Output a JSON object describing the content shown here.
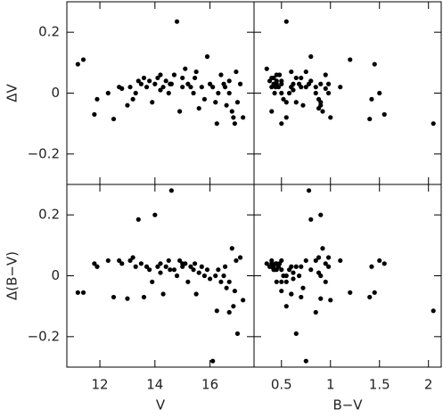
{
  "chart_data": [
    {
      "type": "scatter",
      "ylabel": "ΔV",
      "x": [
        11.2,
        11.4,
        11.8,
        11.9,
        12.3,
        12.5,
        12.7,
        12.8,
        13.0,
        13.1,
        13.3,
        13.4,
        13.5,
        13.6,
        13.7,
        13.8,
        13.9,
        14.0,
        14.1,
        14.2,
        14.3,
        14.4,
        14.5,
        14.6,
        14.7,
        14.8,
        14.9,
        15.0,
        15.1,
        15.2,
        15.3,
        15.4,
        15.5,
        15.6,
        15.7,
        15.8,
        15.9,
        16.0,
        16.1,
        16.2,
        16.3,
        16.4,
        16.5,
        16.6,
        16.7,
        16.8,
        16.9,
        17.0,
        17.1,
        17.2,
        16.95,
        16.85,
        16.55,
        15.45,
        14.55,
        13.2,
        16.25,
        15.0,
        14.2,
        16.7
      ],
      "values": [
        0.095,
        0.11,
        -0.07,
        -0.02,
        0,
        -0.085,
        0.02,
        0.015,
        -0.04,
        0.02,
        0,
        0.04,
        0.03,
        0.05,
        0.02,
        0.04,
        -0.03,
        0.03,
        0.05,
        0.06,
        0.02,
        0.04,
        0,
        0.03,
        0.06,
        0.235,
        -0.06,
        0.05,
        0.08,
        0.03,
        0.02,
        0,
        0.07,
        -0.05,
        0.02,
        -0.02,
        0.12,
        0.03,
        0.02,
        -0.03,
        0,
        0.06,
        0.03,
        -0.04,
        0,
        -0.06,
        -0.1,
        -0.03,
        0.03,
        -0.08,
        0.07,
        -0.08,
        0.02,
        0.05,
        0.03,
        -0.02,
        -0.1,
        0.02,
        0.01,
        0.04
      ],
      "color": "#000000",
      "xlim": [
        10.8,
        17.6
      ],
      "xticks": [
        12,
        14,
        16
      ],
      "ylim": [
        -0.3,
        0.3
      ],
      "yticks": [
        {
          "value": -0.2,
          "label": "−0.2"
        },
        0,
        0.2
      ]
    },
    {
      "type": "scatter",
      "x": [
        1.45,
        1.2,
        1.55,
        1.42,
        1.5,
        1.4,
        1.1,
        0.95,
        0.9,
        0.85,
        0.98,
        0.8,
        0.45,
        0.7,
        0.4,
        0.5,
        0.55,
        0.9,
        0.42,
        0.48,
        0.6,
        0.38,
        0.5,
        0.78,
        0.45,
        0.55,
        0.4,
        0.65,
        0.35,
        0.5,
        0.7,
        0.43,
        0.6,
        0.88,
        0.47,
        0.52,
        0.8,
        0.62,
        0.75,
        0.9,
        0.58,
        0.95,
        0.68,
        0.72,
        0.85,
        0.92,
        0.5,
        0.65,
        0.98,
        1.0,
        0.75,
        0.55,
        0.6,
        0.4,
        0.42,
        0.88,
        2.05,
        0.44,
        0.62,
        0.45
      ],
      "values": [
        0.095,
        0.11,
        -0.07,
        -0.02,
        0,
        -0.085,
        0.02,
        0.015,
        -0.04,
        0.02,
        0,
        0.04,
        0.03,
        0.05,
        0.02,
        0.04,
        -0.03,
        0.03,
        0.05,
        0.06,
        0.02,
        0.04,
        0,
        0.03,
        0.06,
        0.235,
        -0.06,
        0.05,
        0.08,
        0.03,
        0.02,
        0,
        0.07,
        -0.05,
        0.02,
        -0.02,
        0.12,
        0.03,
        0.02,
        -0.03,
        0,
        0.06,
        0.03,
        -0.04,
        0,
        -0.06,
        -0.1,
        -0.03,
        0.03,
        -0.08,
        0.07,
        -0.08,
        0.02,
        0.05,
        0.03,
        -0.02,
        -0.1,
        0.02,
        0.01,
        0.04
      ],
      "color": "#000000",
      "xlim": [
        0.22,
        2.13
      ],
      "xticks": [
        0.5,
        1,
        1.5,
        2
      ],
      "ylim": [
        -0.3,
        0.3
      ],
      "yticks": [
        -0.2,
        0,
        0.2
      ]
    },
    {
      "type": "scatter",
      "xlabel": "V",
      "ylabel": "Δ(B−V)",
      "x": [
        11.2,
        11.4,
        11.8,
        11.9,
        12.3,
        12.5,
        12.7,
        12.8,
        13.0,
        13.1,
        13.3,
        13.4,
        13.5,
        13.6,
        13.7,
        13.8,
        13.9,
        14.0,
        14.1,
        14.2,
        14.3,
        14.4,
        14.5,
        14.6,
        14.7,
        14.8,
        14.9,
        15.0,
        15.1,
        15.2,
        15.3,
        15.4,
        15.5,
        15.6,
        15.7,
        15.8,
        15.9,
        16.0,
        16.1,
        16.2,
        16.3,
        16.4,
        16.5,
        16.6,
        16.7,
        16.8,
        16.9,
        17.0,
        17.1,
        17.2,
        16.95,
        16.85,
        16.55,
        15.45,
        14.55,
        13.2,
        16.25,
        15.0,
        14.2,
        16.7
      ],
      "values": [
        -0.055,
        -0.055,
        0.04,
        0.03,
        0.05,
        -0.07,
        0.05,
        0.04,
        -0.075,
        0.05,
        0.03,
        0.185,
        0.04,
        -0.07,
        0.03,
        0.02,
        -0.02,
        0.2,
        0.03,
        0.04,
        -0.06,
        0.03,
        0.05,
        0.28,
        0.02,
        0,
        0.05,
        0.03,
        0.04,
        -0.02,
        0.03,
        0.02,
        -0.06,
        0.01,
        0.03,
        0,
        0.02,
        -0.01,
        -0.28,
        0,
        0.02,
        -0.02,
        0,
        -0.04,
        -0.12,
        0.09,
        -0.05,
        -0.19,
        0.06,
        -0.08,
        0.05,
        -0.1,
        0.03,
        0.04,
        0.02,
        0.06,
        -0.115,
        0.04,
        0.01,
        -0.02
      ],
      "color": "#000000",
      "xlim": [
        10.8,
        17.6
      ],
      "xticks": [
        12,
        14,
        16
      ],
      "ylim": [
        -0.3,
        0.3
      ],
      "yticks": [
        {
          "value": -0.2,
          "label": "−0.2"
        },
        0,
        0.2
      ]
    },
    {
      "type": "scatter",
      "xlabel": "B−V",
      "x": [
        1.45,
        1.2,
        1.55,
        1.42,
        1.5,
        1.4,
        1.1,
        0.95,
        0.9,
        0.85,
        0.98,
        0.8,
        0.45,
        0.7,
        0.4,
        0.5,
        0.55,
        0.9,
        0.42,
        0.48,
        0.6,
        0.38,
        0.5,
        0.78,
        0.45,
        0.55,
        0.4,
        0.65,
        0.35,
        0.5,
        0.7,
        0.43,
        0.6,
        0.88,
        0.47,
        0.52,
        0.8,
        0.62,
        0.75,
        0.9,
        0.58,
        0.95,
        0.68,
        0.72,
        0.85,
        0.92,
        0.5,
        0.65,
        0.98,
        1.0,
        0.75,
        0.55,
        0.6,
        0.4,
        0.42,
        0.88,
        2.05,
        0.44,
        0.62,
        0.45
      ],
      "values": [
        -0.055,
        -0.055,
        0.04,
        0.03,
        0.05,
        -0.07,
        0.05,
        0.04,
        -0.075,
        0.05,
        0.03,
        0.185,
        0.04,
        -0.07,
        0.03,
        0.02,
        -0.02,
        0.2,
        0.03,
        0.04,
        -0.06,
        0.03,
        0.05,
        0.28,
        0.02,
        0,
        0.05,
        0.03,
        0.04,
        -0.02,
        0.03,
        0.02,
        -0.06,
        0.01,
        0.03,
        0,
        0.02,
        -0.01,
        -0.28,
        0,
        0.02,
        -0.02,
        0,
        -0.04,
        -0.12,
        0.09,
        -0.05,
        -0.19,
        0.06,
        -0.08,
        0.05,
        -0.1,
        0.03,
        0.04,
        0.02,
        0.06,
        -0.115,
        0.04,
        0.01,
        -0.02
      ],
      "color": "#000000",
      "xlim": [
        0.22,
        2.13
      ],
      "xticks": [
        0.5,
        1,
        1.5,
        2
      ],
      "ylim": [
        -0.3,
        0.3
      ],
      "yticks": [
        -0.2,
        0,
        0.2
      ]
    }
  ]
}
